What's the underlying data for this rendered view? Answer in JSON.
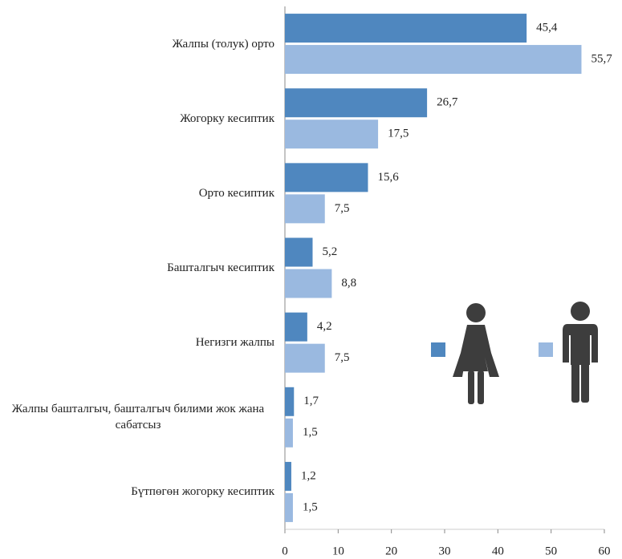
{
  "chart_data": {
    "type": "bar",
    "orientation": "horizontal",
    "categories": [
      "Жалпы (толук) орто",
      "Жогорку кесиптик",
      "Орто кесиптик",
      "Башталгыч кесиптик",
      "Негизги жалпы",
      "Жалпы башталгыч, башталгыч билими жок жана сабатсыз",
      "Бүтпөгөн жогорку кесиптик"
    ],
    "series": [
      {
        "color": "#4f87bf",
        "values": [
          45.4,
          26.7,
          15.6,
          5.2,
          4.2,
          1.7,
          1.2
        ],
        "value_labels": [
          "45,4",
          "26,7",
          "15,6",
          "5,2",
          "4,2",
          "1,7",
          "1,2"
        ]
      },
      {
        "color": "#9ab9e0",
        "values": [
          55.7,
          17.5,
          7.5,
          8.8,
          7.5,
          1.5,
          1.5
        ],
        "value_labels": [
          "55,7",
          "17,5",
          "7,5",
          "8,8",
          "7,5",
          "1,5",
          "1,5"
        ]
      }
    ],
    "xlim": [
      0,
      60
    ],
    "xticks": [
      0,
      10,
      20,
      30,
      40,
      50,
      60
    ]
  }
}
